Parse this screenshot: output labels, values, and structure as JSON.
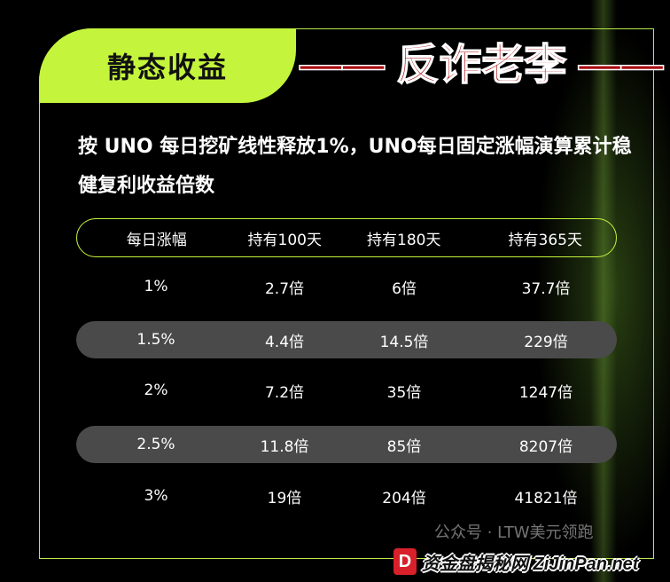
{
  "title": "静态收益",
  "description": "按 UNO 每日挖矿线性释放1%，UNO每日固定涨幅演算累计稳健复利收益倍数",
  "table": {
    "headers": [
      "每日涨幅",
      "持有100天",
      "持有180天",
      "持有365天"
    ],
    "rows": [
      [
        "1%",
        "2.7倍",
        "6倍",
        "37.7倍"
      ],
      [
        "1.5%",
        "4.4倍",
        "14.5倍",
        "229倍"
      ],
      [
        "2%",
        "7.2倍",
        "35倍",
        "1247倍"
      ],
      [
        "2.5%",
        "11.8倍",
        "85倍",
        "8207倍"
      ],
      [
        "3%",
        "19倍",
        "204倍",
        "41821倍"
      ]
    ]
  },
  "stamp": "—— 反诈老李 ——",
  "watermark": {
    "logo": "D",
    "text": "资金盘揭秘网 ZiJinPan.net",
    "faint_text": "公众号 · LTW美元领跑"
  },
  "colors": {
    "accent": "#c4f53c",
    "stamp": "#a80d12",
    "row_alt": "#4a4a4a"
  }
}
